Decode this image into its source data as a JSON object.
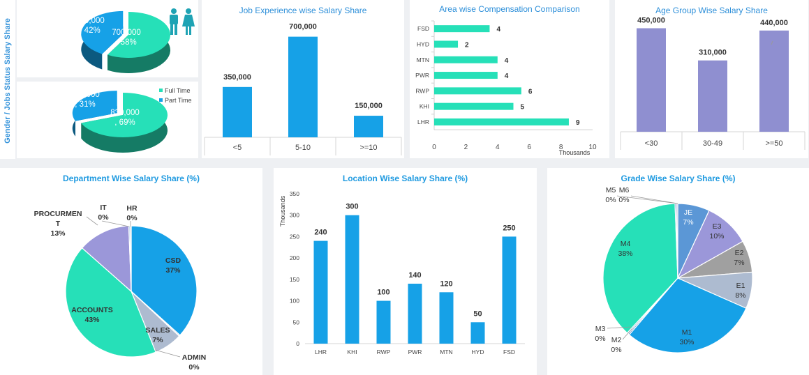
{
  "colors": {
    "blue": "#16a1e7",
    "green": "#26e0b8",
    "purple": "#8f8fd0",
    "steel": "#5b97d6",
    "gray": "#a0a0a0",
    "lightsteel": "#adbbd0",
    "lavender": "#9b97d9",
    "title": "#2d8fd9",
    "text": "#333333"
  },
  "side_title": "Gender / Jobs Status Salary Share",
  "gender_legend": [
    "Full Time",
    "Part Time"
  ],
  "icons": [
    "male-person-icon",
    "female-person-icon"
  ],
  "chart_data": [
    {
      "id": "gender",
      "type": "pie",
      "style": "3d",
      "slices": [
        {
          "label": "700,000",
          "pct": ", 58%",
          "value": 700000
        },
        {
          "label": "500,000",
          "pct": ", 42%",
          "value": 500000
        }
      ]
    },
    {
      "id": "jobstatus",
      "type": "pie",
      "style": "3d",
      "slices": [
        {
          "label": "830,000",
          "pct": ", 69%",
          "value": 830000,
          "name": "Full Time"
        },
        {
          "label": "370,000",
          "pct": ", 31%",
          "value": 370000,
          "name": "Part Time"
        }
      ]
    },
    {
      "id": "experience",
      "type": "bar",
      "title": "Job Experience wise Salary Share",
      "categories": [
        "<5",
        "5-10",
        ">=10"
      ],
      "values": [
        350000,
        700000,
        150000
      ],
      "labels": [
        "350,000",
        "700,000",
        "150,000"
      ],
      "ylim": [
        0,
        800000
      ]
    },
    {
      "id": "area",
      "type": "bar",
      "orientation": "horizontal",
      "title": "Area wise Compensation Comparison",
      "categories": [
        "FSD",
        "HYD",
        "MTN",
        "PWR",
        "RWP",
        "KHI",
        "LHR"
      ],
      "values": [
        3.5,
        1.5,
        4,
        4,
        5.5,
        5,
        8.5
      ],
      "labels": [
        "4",
        "2",
        "4",
        "4",
        "6",
        "5",
        "9"
      ],
      "xticks": [
        "0",
        "2",
        "4",
        "6",
        "8",
        "10"
      ],
      "xlim": [
        0,
        10
      ],
      "xlabel": "Thousands"
    },
    {
      "id": "age",
      "type": "bar",
      "title": "Age Group Wise Salary Share",
      "categories": [
        "<30",
        "30-49",
        ">=50"
      ],
      "values": [
        450000,
        310000,
        440000
      ],
      "labels": [
        "450,000",
        "310,000",
        "440,000"
      ],
      "ylim": [
        0,
        500000
      ]
    },
    {
      "id": "department",
      "type": "pie",
      "title": "Department Wise Salary Share (%)",
      "slices": [
        {
          "name": "CSD",
          "pct": "37%",
          "value": 37
        },
        {
          "name": "ADMIN",
          "pct": "0%",
          "value": 0.3
        },
        {
          "name": "SALES",
          "pct": "7%",
          "value": 7
        },
        {
          "name": "ACCOUNTS",
          "pct": "43%",
          "value": 43
        },
        {
          "name": "PROCURMENT",
          "pct": "13%",
          "value": 13
        },
        {
          "name": "IT",
          "pct": "0%",
          "value": 0.3
        },
        {
          "name": "HR",
          "pct": "0%",
          "value": 0.3
        }
      ]
    },
    {
      "id": "location",
      "type": "bar",
      "title": "Location Wise Salary Share (%)",
      "categories": [
        "LHR",
        "KHI",
        "RWP",
        "PWR",
        "MTN",
        "HYD",
        "FSD"
      ],
      "values": [
        240,
        300,
        100,
        140,
        120,
        50,
        250
      ],
      "labels": [
        "240",
        "300",
        "100",
        "140",
        "120",
        "50",
        "250"
      ],
      "yticks": [
        "0",
        "50",
        "100",
        "150",
        "200",
        "250",
        "300",
        "350"
      ],
      "ylim": [
        0,
        350
      ],
      "ylabel": "Thousands"
    },
    {
      "id": "grade",
      "type": "pie",
      "title": "Grade Wise Salary Share (%)",
      "slices": [
        {
          "name": "JE",
          "pct": "7%",
          "value": 7
        },
        {
          "name": "E3",
          "pct": "10%",
          "value": 10
        },
        {
          "name": "E2",
          "pct": "7%",
          "value": 7
        },
        {
          "name": "E1",
          "pct": "8%",
          "value": 8
        },
        {
          "name": "M1",
          "pct": "30%",
          "value": 30
        },
        {
          "name": "M2",
          "pct": "0%",
          "value": 0.3
        },
        {
          "name": "M3",
          "pct": "0%",
          "value": 0.3
        },
        {
          "name": "M4",
          "pct": "38%",
          "value": 38
        },
        {
          "name": "M5",
          "pct": "0%",
          "value": 0.3
        },
        {
          "name": "M6",
          "pct": "0%",
          "value": 0.3
        }
      ]
    }
  ]
}
